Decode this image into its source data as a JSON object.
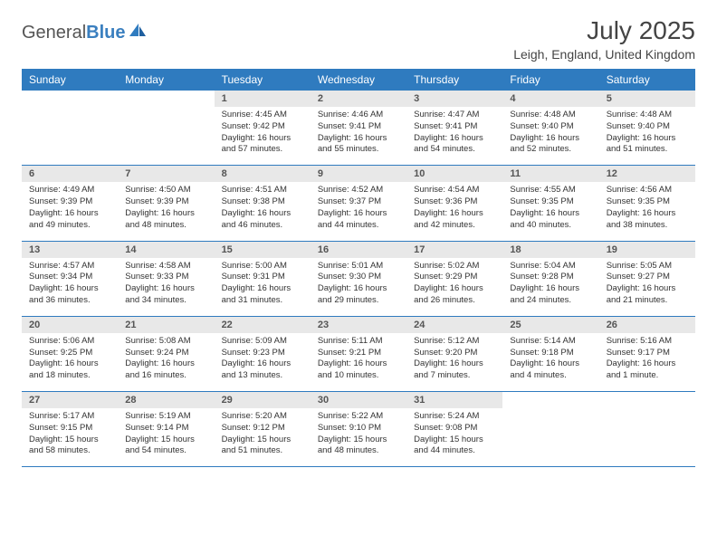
{
  "logo": {
    "first": "General",
    "second": "Blue"
  },
  "title": "July 2025",
  "location": "Leigh, England, United Kingdom",
  "colors": {
    "header_bg": "#2f7bbf",
    "header_fg": "#ffffff",
    "daynum_bg": "#e8e8e8",
    "border": "#2f7bbf",
    "text": "#333333",
    "logo_accent": "#3a7fbf"
  },
  "columns": [
    "Sunday",
    "Monday",
    "Tuesday",
    "Wednesday",
    "Thursday",
    "Friday",
    "Saturday"
  ],
  "weeks": [
    {
      "nums": [
        "",
        "",
        "1",
        "2",
        "3",
        "4",
        "5"
      ],
      "cells": [
        null,
        null,
        {
          "sunrise": "Sunrise: 4:45 AM",
          "sunset": "Sunset: 9:42 PM",
          "day1": "Daylight: 16 hours",
          "day2": "and 57 minutes."
        },
        {
          "sunrise": "Sunrise: 4:46 AM",
          "sunset": "Sunset: 9:41 PM",
          "day1": "Daylight: 16 hours",
          "day2": "and 55 minutes."
        },
        {
          "sunrise": "Sunrise: 4:47 AM",
          "sunset": "Sunset: 9:41 PM",
          "day1": "Daylight: 16 hours",
          "day2": "and 54 minutes."
        },
        {
          "sunrise": "Sunrise: 4:48 AM",
          "sunset": "Sunset: 9:40 PM",
          "day1": "Daylight: 16 hours",
          "day2": "and 52 minutes."
        },
        {
          "sunrise": "Sunrise: 4:48 AM",
          "sunset": "Sunset: 9:40 PM",
          "day1": "Daylight: 16 hours",
          "day2": "and 51 minutes."
        }
      ]
    },
    {
      "nums": [
        "6",
        "7",
        "8",
        "9",
        "10",
        "11",
        "12"
      ],
      "cells": [
        {
          "sunrise": "Sunrise: 4:49 AM",
          "sunset": "Sunset: 9:39 PM",
          "day1": "Daylight: 16 hours",
          "day2": "and 49 minutes."
        },
        {
          "sunrise": "Sunrise: 4:50 AM",
          "sunset": "Sunset: 9:39 PM",
          "day1": "Daylight: 16 hours",
          "day2": "and 48 minutes."
        },
        {
          "sunrise": "Sunrise: 4:51 AM",
          "sunset": "Sunset: 9:38 PM",
          "day1": "Daylight: 16 hours",
          "day2": "and 46 minutes."
        },
        {
          "sunrise": "Sunrise: 4:52 AM",
          "sunset": "Sunset: 9:37 PM",
          "day1": "Daylight: 16 hours",
          "day2": "and 44 minutes."
        },
        {
          "sunrise": "Sunrise: 4:54 AM",
          "sunset": "Sunset: 9:36 PM",
          "day1": "Daylight: 16 hours",
          "day2": "and 42 minutes."
        },
        {
          "sunrise": "Sunrise: 4:55 AM",
          "sunset": "Sunset: 9:35 PM",
          "day1": "Daylight: 16 hours",
          "day2": "and 40 minutes."
        },
        {
          "sunrise": "Sunrise: 4:56 AM",
          "sunset": "Sunset: 9:35 PM",
          "day1": "Daylight: 16 hours",
          "day2": "and 38 minutes."
        }
      ]
    },
    {
      "nums": [
        "13",
        "14",
        "15",
        "16",
        "17",
        "18",
        "19"
      ],
      "cells": [
        {
          "sunrise": "Sunrise: 4:57 AM",
          "sunset": "Sunset: 9:34 PM",
          "day1": "Daylight: 16 hours",
          "day2": "and 36 minutes."
        },
        {
          "sunrise": "Sunrise: 4:58 AM",
          "sunset": "Sunset: 9:33 PM",
          "day1": "Daylight: 16 hours",
          "day2": "and 34 minutes."
        },
        {
          "sunrise": "Sunrise: 5:00 AM",
          "sunset": "Sunset: 9:31 PM",
          "day1": "Daylight: 16 hours",
          "day2": "and 31 minutes."
        },
        {
          "sunrise": "Sunrise: 5:01 AM",
          "sunset": "Sunset: 9:30 PM",
          "day1": "Daylight: 16 hours",
          "day2": "and 29 minutes."
        },
        {
          "sunrise": "Sunrise: 5:02 AM",
          "sunset": "Sunset: 9:29 PM",
          "day1": "Daylight: 16 hours",
          "day2": "and 26 minutes."
        },
        {
          "sunrise": "Sunrise: 5:04 AM",
          "sunset": "Sunset: 9:28 PM",
          "day1": "Daylight: 16 hours",
          "day2": "and 24 minutes."
        },
        {
          "sunrise": "Sunrise: 5:05 AM",
          "sunset": "Sunset: 9:27 PM",
          "day1": "Daylight: 16 hours",
          "day2": "and 21 minutes."
        }
      ]
    },
    {
      "nums": [
        "20",
        "21",
        "22",
        "23",
        "24",
        "25",
        "26"
      ],
      "cells": [
        {
          "sunrise": "Sunrise: 5:06 AM",
          "sunset": "Sunset: 9:25 PM",
          "day1": "Daylight: 16 hours",
          "day2": "and 18 minutes."
        },
        {
          "sunrise": "Sunrise: 5:08 AM",
          "sunset": "Sunset: 9:24 PM",
          "day1": "Daylight: 16 hours",
          "day2": "and 16 minutes."
        },
        {
          "sunrise": "Sunrise: 5:09 AM",
          "sunset": "Sunset: 9:23 PM",
          "day1": "Daylight: 16 hours",
          "day2": "and 13 minutes."
        },
        {
          "sunrise": "Sunrise: 5:11 AM",
          "sunset": "Sunset: 9:21 PM",
          "day1": "Daylight: 16 hours",
          "day2": "and 10 minutes."
        },
        {
          "sunrise": "Sunrise: 5:12 AM",
          "sunset": "Sunset: 9:20 PM",
          "day1": "Daylight: 16 hours",
          "day2": "and 7 minutes."
        },
        {
          "sunrise": "Sunrise: 5:14 AM",
          "sunset": "Sunset: 9:18 PM",
          "day1": "Daylight: 16 hours",
          "day2": "and 4 minutes."
        },
        {
          "sunrise": "Sunrise: 5:16 AM",
          "sunset": "Sunset: 9:17 PM",
          "day1": "Daylight: 16 hours",
          "day2": "and 1 minute."
        }
      ]
    },
    {
      "nums": [
        "27",
        "28",
        "29",
        "30",
        "31",
        "",
        ""
      ],
      "cells": [
        {
          "sunrise": "Sunrise: 5:17 AM",
          "sunset": "Sunset: 9:15 PM",
          "day1": "Daylight: 15 hours",
          "day2": "and 58 minutes."
        },
        {
          "sunrise": "Sunrise: 5:19 AM",
          "sunset": "Sunset: 9:14 PM",
          "day1": "Daylight: 15 hours",
          "day2": "and 54 minutes."
        },
        {
          "sunrise": "Sunrise: 5:20 AM",
          "sunset": "Sunset: 9:12 PM",
          "day1": "Daylight: 15 hours",
          "day2": "and 51 minutes."
        },
        {
          "sunrise": "Sunrise: 5:22 AM",
          "sunset": "Sunset: 9:10 PM",
          "day1": "Daylight: 15 hours",
          "day2": "and 48 minutes."
        },
        {
          "sunrise": "Sunrise: 5:24 AM",
          "sunset": "Sunset: 9:08 PM",
          "day1": "Daylight: 15 hours",
          "day2": "and 44 minutes."
        },
        null,
        null
      ]
    }
  ]
}
